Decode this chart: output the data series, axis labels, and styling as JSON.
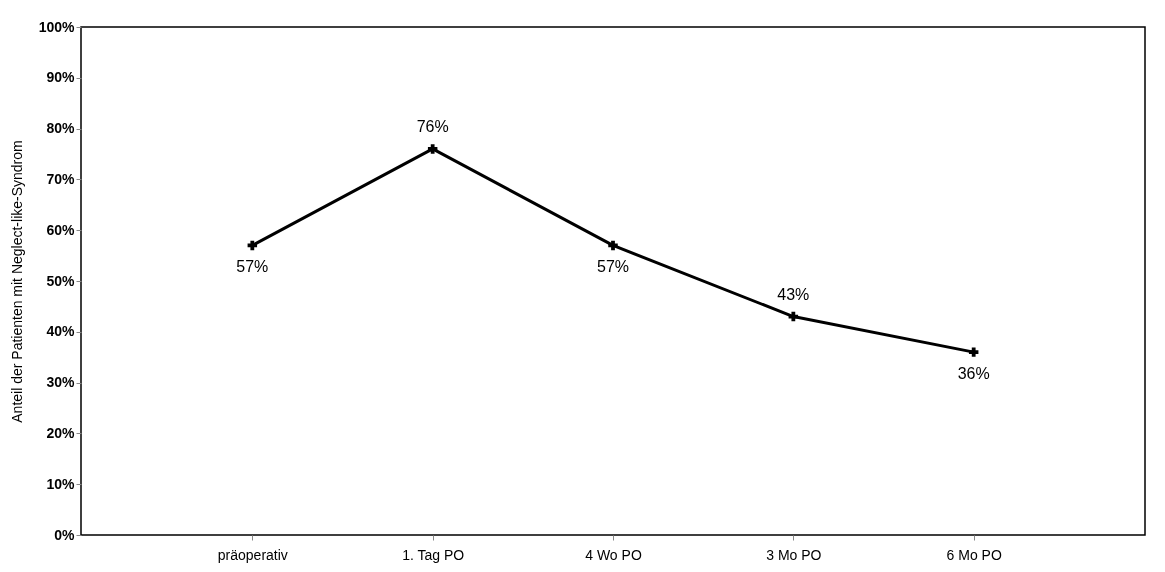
{
  "chart_data": {
    "type": "line",
    "ylabel": "Anteil der Patienten mit Neglect-like-Syndrom",
    "categories": [
      "präoperativ",
      "1. Tag PO",
      "4 Wo PO",
      "3 Mo PO",
      "6 Mo PO"
    ],
    "series": [
      {
        "color": "#000000",
        "values": [
          57,
          76,
          57,
          43,
          36
        ]
      }
    ],
    "value_labels": [
      "57%",
      "76%",
      "57%",
      "43%",
      "36%"
    ],
    "ylim": [
      0,
      100
    ],
    "yticks": [
      {
        "value": 0,
        "label": "0%"
      },
      {
        "value": 10,
        "label": "10%"
      },
      {
        "value": 20,
        "label": "20%"
      },
      {
        "value": 30,
        "label": "30%"
      },
      {
        "value": 40,
        "label": "40%"
      },
      {
        "value": 50,
        "label": "50%"
      },
      {
        "value": 60,
        "label": "60%"
      },
      {
        "value": 70,
        "label": "70%"
      },
      {
        "value": 80,
        "label": "80%"
      },
      {
        "value": 90,
        "label": "90%"
      },
      {
        "value": 100,
        "label": "100%"
      }
    ],
    "marker": "cross",
    "line_style": "solid",
    "grid": false
  }
}
